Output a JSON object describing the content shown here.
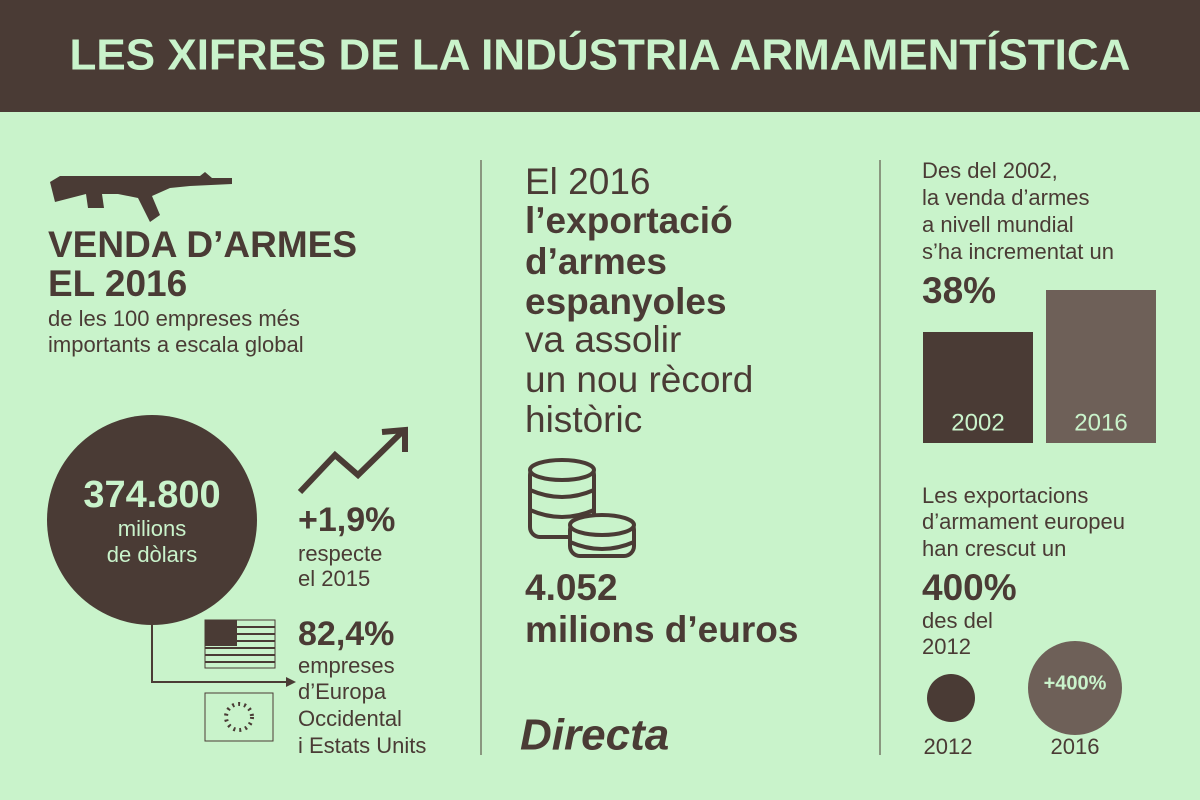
{
  "header": {
    "title": "LES XIFRES DE LA INDÚSTRIA ARMAMENTÍSTICA"
  },
  "sales": {
    "heading": [
      "VENDA D’ARMES",
      "EL 2016"
    ],
    "subtitle": [
      "de les 100 empreses més",
      "importants a escala global"
    ],
    "total": "374.800",
    "total_unit": [
      "milions",
      "de dòlars"
    ],
    "growth": "+1,9%",
    "growth_note": [
      "respecte",
      "el 2015"
    ],
    "share": "82,4%",
    "share_note": [
      "empreses",
      "d’Europa",
      "Occidental",
      "i Estats Units"
    ]
  },
  "spain": {
    "intro": "El 2016",
    "bold": [
      "l’exportació",
      "d’armes",
      "espanyoles"
    ],
    "light": [
      "va assolir",
      "un nou rècord",
      "històric"
    ],
    "amount": "4.052",
    "amount_unit": "milions d’euros",
    "logo": "Directa"
  },
  "world": {
    "text": [
      "Des del 2002,",
      "la venda d’armes",
      "a nivell mundial",
      "s’ha incrementat un"
    ],
    "increase": "38%",
    "bars": [
      "2002",
      "2016"
    ]
  },
  "europe": {
    "text": [
      "Les exportacions",
      "d’armament europeu",
      "han crescut un"
    ],
    "increase": "400%",
    "since": [
      "des del",
      "2012"
    ],
    "circles": [
      "2012",
      "2016"
    ],
    "badge": "+400%"
  }
}
